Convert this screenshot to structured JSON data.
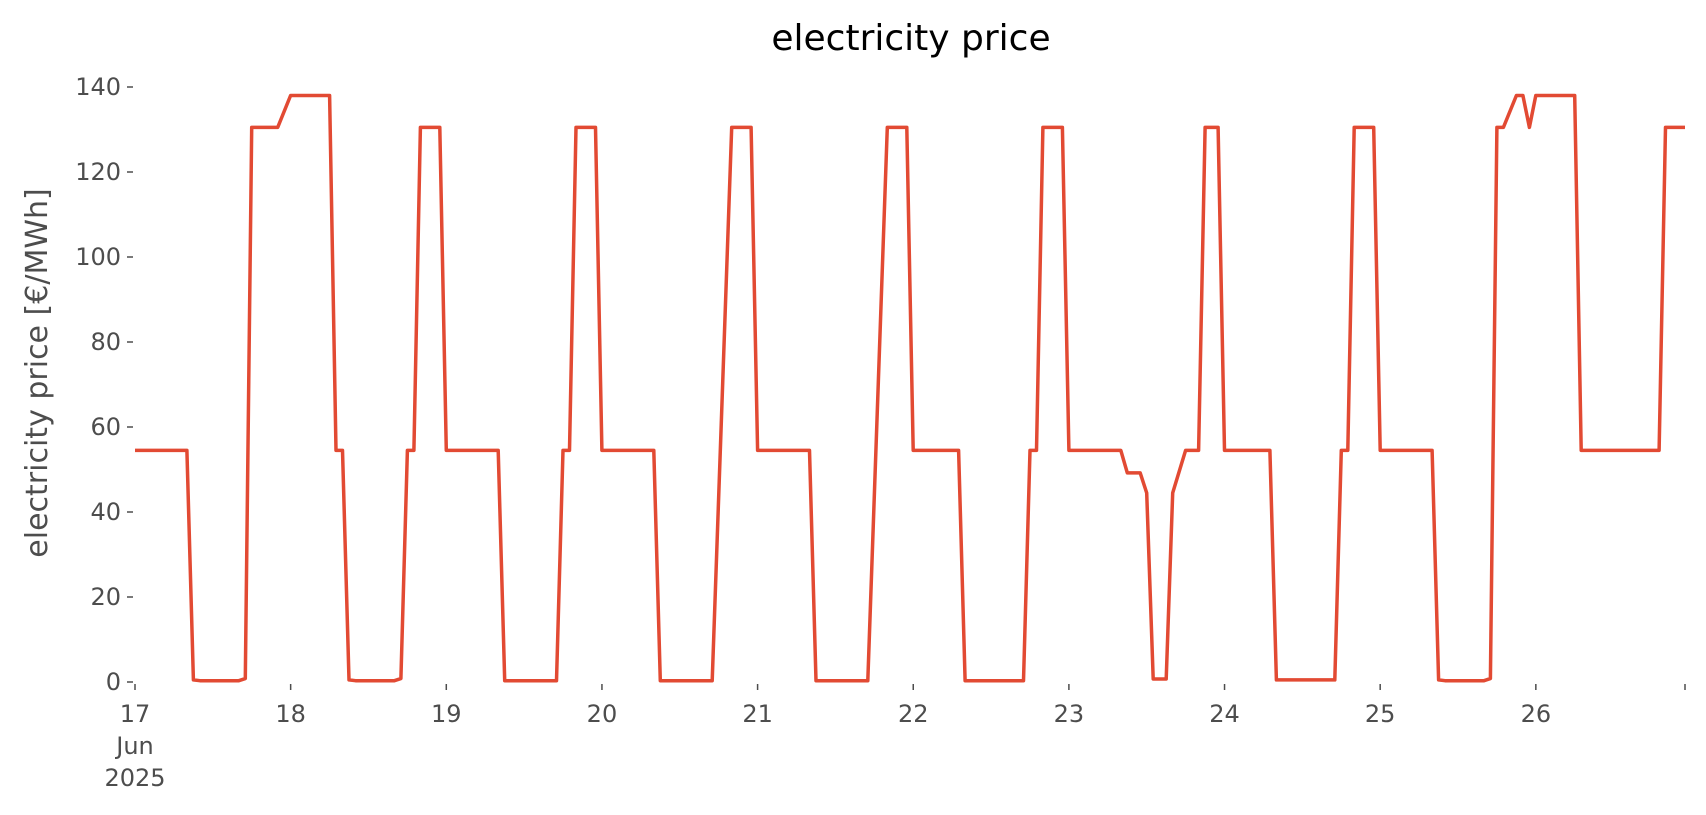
{
  "chart_data": {
    "type": "line",
    "title": "electricity price",
    "xlabel": "",
    "ylabel": "electricity price [€/MWh]",
    "x_tick_labels": [
      {
        "day": 17,
        "text": "17",
        "sub": [
          "Jun",
          "2025"
        ]
      },
      {
        "day": 18,
        "text": "18"
      },
      {
        "day": 19,
        "text": "19"
      },
      {
        "day": 20,
        "text": "20"
      },
      {
        "day": 21,
        "text": "21"
      },
      {
        "day": 22,
        "text": "22"
      },
      {
        "day": 23,
        "text": "23"
      },
      {
        "day": 24,
        "text": "24"
      },
      {
        "day": 25,
        "text": "25"
      },
      {
        "day": 26,
        "text": "26"
      }
    ],
    "y_ticks": [
      0,
      20,
      40,
      60,
      80,
      100,
      120,
      140
    ],
    "xlim": [
      "2025-06-17 00:00",
      "2025-06-26 23:00"
    ],
    "ylim": [
      0,
      140
    ],
    "grid": false,
    "legend": "none",
    "line_color": "#e24a33",
    "series": [
      {
        "points": [
          [
            "2025-06-17 00:00",
            54.5
          ],
          [
            "2025-06-17 08:00",
            54.5
          ],
          [
            "2025-06-17 09:00",
            0.5
          ],
          [
            "2025-06-17 10:00",
            0.3
          ],
          [
            "2025-06-17 16:00",
            0.3
          ],
          [
            "2025-06-17 17:00",
            0.8
          ],
          [
            "2025-06-17 18:00",
            130.5
          ],
          [
            "2025-06-17 22:00",
            130.5
          ],
          [
            "2025-06-18 00:00",
            138
          ],
          [
            "2025-06-18 06:00",
            138
          ],
          [
            "2025-06-18 07:00",
            54.5
          ],
          [
            "2025-06-18 08:00",
            54.5
          ],
          [
            "2025-06-18 09:00",
            0.5
          ],
          [
            "2025-06-18 10:00",
            0.3
          ],
          [
            "2025-06-18 16:00",
            0.3
          ],
          [
            "2025-06-18 17:00",
            0.8
          ],
          [
            "2025-06-18 18:00",
            54.5
          ],
          [
            "2025-06-18 19:00",
            54.5
          ],
          [
            "2025-06-18 20:00",
            130.5
          ],
          [
            "2025-06-18 23:00",
            130.5
          ],
          [
            "2025-06-19 00:00",
            54.5
          ],
          [
            "2025-06-19 08:00",
            54.5
          ],
          [
            "2025-06-19 09:00",
            0.3
          ],
          [
            "2025-06-19 17:00",
            0.3
          ],
          [
            "2025-06-19 18:00",
            54.5
          ],
          [
            "2025-06-19 19:00",
            54.5
          ],
          [
            "2025-06-19 20:00",
            130.5
          ],
          [
            "2025-06-19 23:00",
            130.5
          ],
          [
            "2025-06-20 00:00",
            54.5
          ],
          [
            "2025-06-20 08:00",
            54.5
          ],
          [
            "2025-06-20 09:00",
            0.3
          ],
          [
            "2025-06-20 17:00",
            0.3
          ],
          [
            "2025-06-20 20:00",
            130.5
          ],
          [
            "2025-06-20 23:00",
            130.5
          ],
          [
            "2025-06-21 00:00",
            54.5
          ],
          [
            "2025-06-21 08:00",
            54.5
          ],
          [
            "2025-06-21 09:00",
            0.3
          ],
          [
            "2025-06-21 17:00",
            0.3
          ],
          [
            "2025-06-21 20:00",
            130.5
          ],
          [
            "2025-06-21 23:00",
            130.5
          ],
          [
            "2025-06-22 00:00",
            54.5
          ],
          [
            "2025-06-22 07:00",
            54.5
          ],
          [
            "2025-06-22 08:00",
            0.3
          ],
          [
            "2025-06-22 17:00",
            0.3
          ],
          [
            "2025-06-22 18:00",
            54.5
          ],
          [
            "2025-06-22 19:00",
            54.5
          ],
          [
            "2025-06-22 20:00",
            130.5
          ],
          [
            "2025-06-22 23:00",
            130.5
          ],
          [
            "2025-06-23 00:00",
            54.5
          ],
          [
            "2025-06-23 08:00",
            54.5
          ],
          [
            "2025-06-23 09:00",
            49.2
          ],
          [
            "2025-06-23 11:00",
            49.2
          ],
          [
            "2025-06-23 12:00",
            44.5
          ],
          [
            "2025-06-23 13:00",
            0.7
          ],
          [
            "2025-06-23 15:00",
            0.7
          ],
          [
            "2025-06-23 16:00",
            44.5
          ],
          [
            "2025-06-23 18:00",
            54.5
          ],
          [
            "2025-06-23 20:00",
            54.5
          ],
          [
            "2025-06-23 21:00",
            130.5
          ],
          [
            "2025-06-23 23:00",
            130.5
          ],
          [
            "2025-06-24 00:00",
            54.5
          ],
          [
            "2025-06-24 07:00",
            54.5
          ],
          [
            "2025-06-24 08:00",
            0.5
          ],
          [
            "2025-06-24 17:00",
            0.5
          ],
          [
            "2025-06-24 18:00",
            54.5
          ],
          [
            "2025-06-24 19:00",
            54.5
          ],
          [
            "2025-06-24 20:00",
            130.5
          ],
          [
            "2025-06-24 23:00",
            130.5
          ],
          [
            "2025-06-25 00:00",
            54.5
          ],
          [
            "2025-06-25 08:00",
            54.5
          ],
          [
            "2025-06-25 09:00",
            0.5
          ],
          [
            "2025-06-25 10:00",
            0.3
          ],
          [
            "2025-06-25 16:00",
            0.3
          ],
          [
            "2025-06-25 17:00",
            0.8
          ],
          [
            "2025-06-25 18:00",
            130.5
          ],
          [
            "2025-06-25 19:00",
            130.5
          ],
          [
            "2025-06-25 21:00",
            138
          ],
          [
            "2025-06-25 22:00",
            138
          ],
          [
            "2025-06-25 23:00",
            130.5
          ],
          [
            "2025-06-26 00:00",
            138
          ],
          [
            "2025-06-26 06:00",
            138
          ],
          [
            "2025-06-26 07:00",
            54.5
          ],
          [
            "2025-06-26 19:00",
            54.5
          ],
          [
            "2025-06-26 20:00",
            130.5
          ],
          [
            "2025-06-26 23:00",
            130.5
          ]
        ]
      }
    ]
  }
}
